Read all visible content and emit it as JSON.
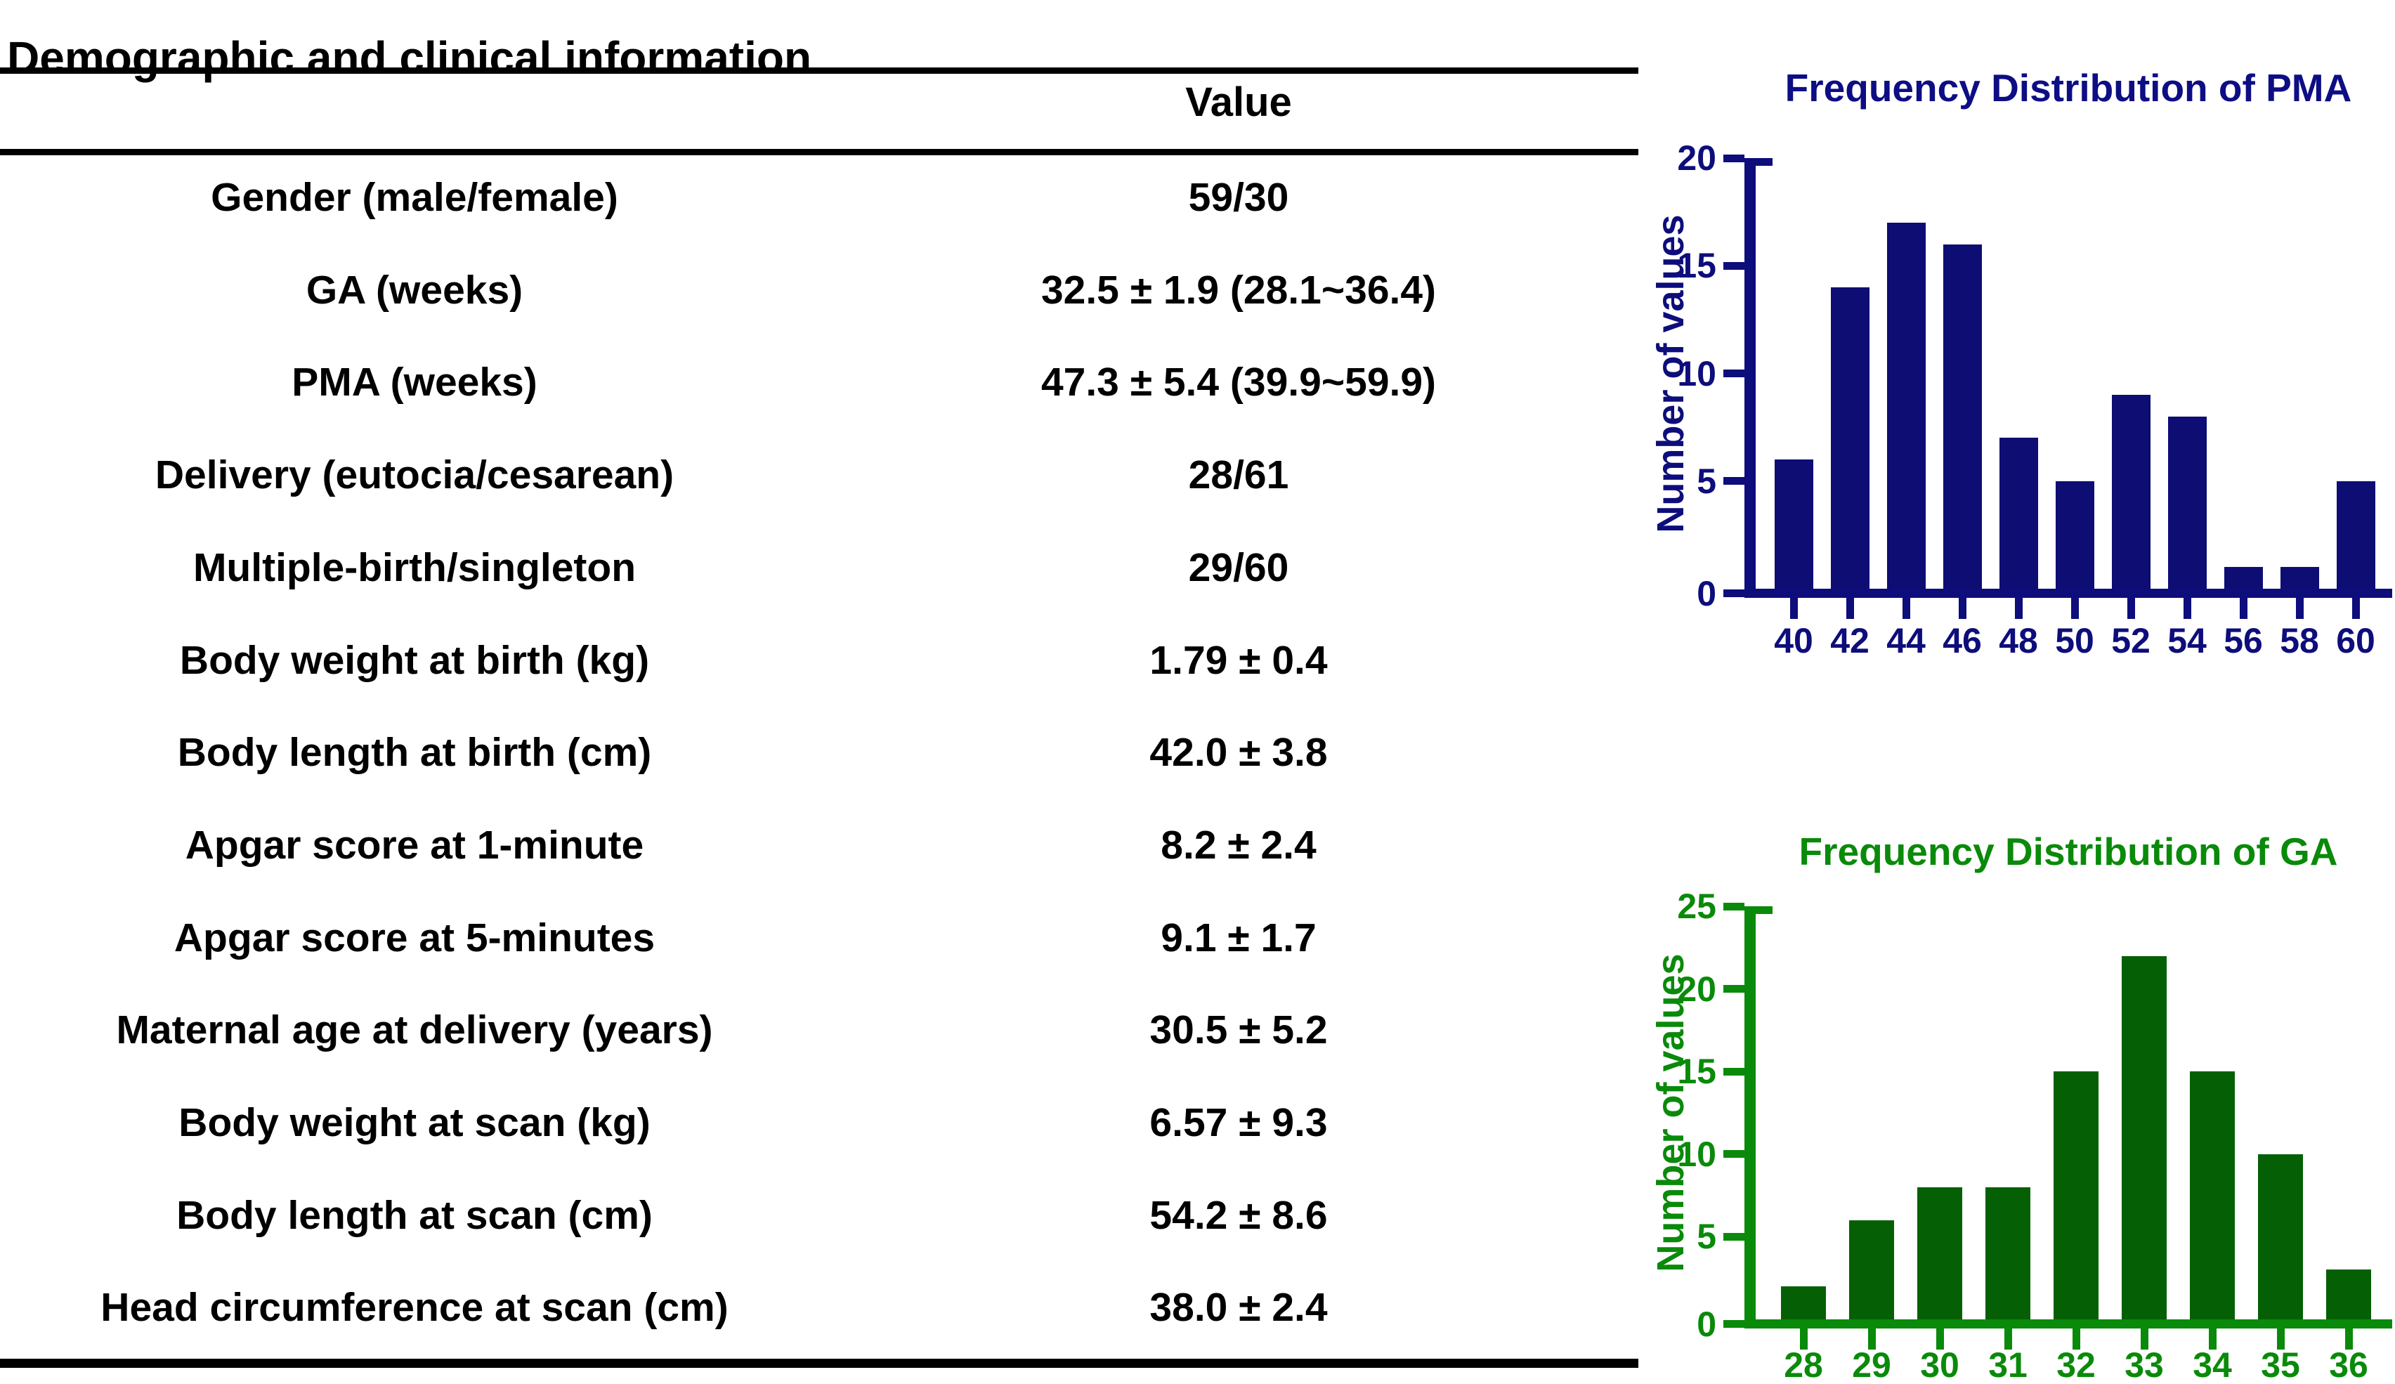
{
  "table": {
    "title": "Demographic and clinical information",
    "value_header": "Value",
    "rows": [
      {
        "label": "Gender (male/female)",
        "value": "59/30"
      },
      {
        "label": "GA (weeks)",
        "value": "32.5 ± 1.9 (28.1~36.4)"
      },
      {
        "label": "PMA (weeks)",
        "value": "47.3 ± 5.4 (39.9~59.9)"
      },
      {
        "label": "Delivery (eutocia/cesarean)",
        "value": "28/61"
      },
      {
        "label": "Multiple-birth/singleton",
        "value": "29/60"
      },
      {
        "label": "Body weight at birth (kg)",
        "value": "1.79 ± 0.4"
      },
      {
        "label": "Body length at birth (cm)",
        "value": "42.0 ± 3.8"
      },
      {
        "label": "Apgar score at 1-minute",
        "value": "8.2 ± 2.4"
      },
      {
        "label": "Apgar score at 5-minutes",
        "value": "9.1 ± 1.7"
      },
      {
        "label": "Maternal age at delivery (years)",
        "value": "30.5 ± 5.2"
      },
      {
        "label": "Body weight at scan (kg)",
        "value": "6.57 ± 9.3"
      },
      {
        "label": "Body length at scan (cm)",
        "value": "54.2 ± 8.6"
      },
      {
        "label": "Head circumference at scan (cm)",
        "value": "38.0 ± 2.4"
      }
    ]
  },
  "chart_data": [
    {
      "type": "bar",
      "title": "Frequency Distribution of PMA",
      "xlabel": "",
      "ylabel": "Number of values",
      "categories": [
        "40",
        "42",
        "44",
        "46",
        "48",
        "50",
        "52",
        "54",
        "56",
        "58",
        "60"
      ],
      "values": [
        6,
        14,
        17,
        16,
        7,
        5,
        9,
        8,
        1,
        1,
        5
      ],
      "ylim": [
        0,
        20
      ],
      "ytick_step": 5,
      "grid": "off",
      "legend": "none",
      "axis_color": "#0D0D7C",
      "bar_color": "#0D0D74",
      "title_color": "#0D0D84"
    },
    {
      "type": "bar",
      "title": "Frequency Distribution of GA",
      "xlabel": "",
      "ylabel": "Number of values",
      "categories": [
        "28",
        "29",
        "30",
        "31",
        "32",
        "33",
        "34",
        "35",
        "36"
      ],
      "values": [
        2,
        6,
        8,
        8,
        15,
        22,
        15,
        10,
        3
      ],
      "ylim": [
        0,
        25
      ],
      "ytick_step": 5,
      "grid": "off",
      "legend": "none",
      "axis_color": "#0A8A0A",
      "bar_color": "#056005",
      "title_color": "#0A8A0A"
    }
  ]
}
